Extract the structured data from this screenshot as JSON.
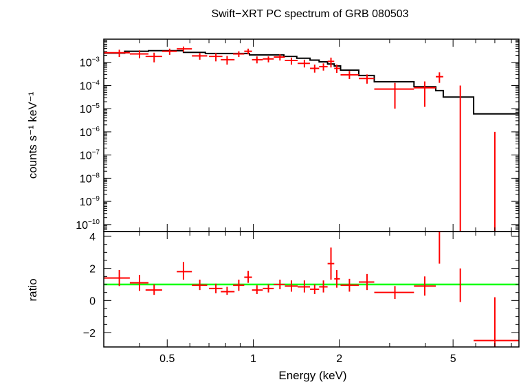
{
  "chart_data": [
    {
      "type": "scatter",
      "panel": "spectrum",
      "title": "Swift−XRT PC spectrum of GRB 080503",
      "xlabel": "",
      "ylabel": "counts s⁻¹ keV⁻¹",
      "xscale": "log",
      "yscale": "log",
      "xlim": [
        0.3,
        8.5
      ],
      "ylim": [
        5e-11,
        0.01
      ],
      "yticks": [
        {
          "value": 0.001,
          "base": "10",
          "exp": "−3"
        },
        {
          "value": 0.0001,
          "base": "10",
          "exp": "−4"
        },
        {
          "value": 1e-05,
          "base": "10",
          "exp": "−5"
        },
        {
          "value": 1e-06,
          "base": "10",
          "exp": "−6"
        },
        {
          "value": 1e-07,
          "base": "10",
          "exp": "−7"
        },
        {
          "value": 1e-08,
          "base": "10",
          "exp": "−8"
        },
        {
          "value": 1e-09,
          "base": "10",
          "exp": "−9"
        },
        {
          "value": 1e-10,
          "base": "10",
          "exp": "−10"
        }
      ],
      "colors": {
        "data": "#ff0000",
        "model": "#000000"
      },
      "series": [
        {
          "type": "errorbar",
          "points": [
            {
              "x": 0.34,
              "xlo": 0.3,
              "xhi": 0.37,
              "y": 0.0026,
              "ylo": 0.0017,
              "yhi": 0.0035
            },
            {
              "x": 0.4,
              "xlo": 0.37,
              "xhi": 0.43,
              "y": 0.0023,
              "ylo": 0.0015,
              "yhi": 0.0033
            },
            {
              "x": 0.45,
              "xlo": 0.42,
              "xhi": 0.48,
              "y": 0.0018,
              "ylo": 0.001,
              "yhi": 0.0026
            },
            {
              "x": 0.51,
              "xlo": 0.48,
              "xhi": 0.54,
              "y": 0.003,
              "ylo": 0.0021,
              "yhi": 0.0039
            },
            {
              "x": 0.57,
              "xlo": 0.54,
              "xhi": 0.61,
              "y": 0.0038,
              "ylo": 0.0028,
              "yhi": 0.0048
            },
            {
              "x": 0.65,
              "xlo": 0.61,
              "xhi": 0.69,
              "y": 0.0019,
              "ylo": 0.0013,
              "yhi": 0.0025
            },
            {
              "x": 0.74,
              "xlo": 0.7,
              "xhi": 0.78,
              "y": 0.0018,
              "ylo": 0.0011,
              "yhi": 0.0025
            },
            {
              "x": 0.81,
              "xlo": 0.77,
              "xhi": 0.86,
              "y": 0.0013,
              "ylo": 0.0008,
              "yhi": 0.0019
            },
            {
              "x": 0.89,
              "xlo": 0.85,
              "xhi": 0.93,
              "y": 0.0023,
              "ylo": 0.0017,
              "yhi": 0.003
            },
            {
              "x": 0.96,
              "xlo": 0.93,
              "xhi": 0.99,
              "y": 0.003,
              "ylo": 0.0022,
              "yhi": 0.0039
            },
            {
              "x": 1.03,
              "xlo": 0.99,
              "xhi": 1.08,
              "y": 0.0013,
              "ylo": 0.0009,
              "yhi": 0.0018
            },
            {
              "x": 1.13,
              "xlo": 1.08,
              "xhi": 1.18,
              "y": 0.0014,
              "ylo": 0.001,
              "yhi": 0.0018
            },
            {
              "x": 1.24,
              "xlo": 1.18,
              "xhi": 1.29,
              "y": 0.0017,
              "ylo": 0.0012,
              "yhi": 0.0022
            },
            {
              "x": 1.36,
              "xlo": 1.29,
              "xhi": 1.43,
              "y": 0.0012,
              "ylo": 0.0008,
              "yhi": 0.0016
            },
            {
              "x": 1.51,
              "xlo": 1.43,
              "xhi": 1.58,
              "y": 0.0009,
              "ylo": 0.0006,
              "yhi": 0.0013
            },
            {
              "x": 1.64,
              "xlo": 1.58,
              "xhi": 1.7,
              "y": 0.00055,
              "ylo": 0.00036,
              "yhi": 0.0008
            },
            {
              "x": 1.76,
              "xlo": 1.7,
              "xhi": 1.82,
              "y": 0.00065,
              "ylo": 0.00044,
              "yhi": 0.0009
            },
            {
              "x": 1.87,
              "xlo": 1.82,
              "xhi": 1.92,
              "y": 0.0011,
              "ylo": 0.0006,
              "yhi": 0.0016
            },
            {
              "x": 1.96,
              "xlo": 1.92,
              "xhi": 2.01,
              "y": 0.00055,
              "ylo": 0.00035,
              "yhi": 0.0008
            },
            {
              "x": 2.17,
              "xlo": 2.02,
              "xhi": 2.34,
              "y": 0.00029,
              "ylo": 0.00019,
              "yhi": 0.00042
            },
            {
              "x": 2.5,
              "xlo": 2.34,
              "xhi": 2.65,
              "y": 0.0002,
              "ylo": 0.00012,
              "yhi": 0.0003
            },
            {
              "x": 3.13,
              "xlo": 2.65,
              "xhi": 3.65,
              "y": 7e-05,
              "ylo": 1e-05,
              "yhi": 0.00013
            },
            {
              "x": 3.98,
              "xlo": 3.65,
              "xhi": 4.35,
              "y": 8e-05,
              "ylo": 1.2e-05,
              "yhi": 0.00015
            },
            {
              "x": 4.48,
              "xlo": 4.35,
              "xhi": 4.62,
              "y": 0.00024,
              "ylo": 0.00013,
              "yhi": 0.00037
            },
            {
              "x": 5.3,
              "xlo": 5.3,
              "xhi": 5.3,
              "y": 0.0001,
              "ylo": 5e-11,
              "yhi": 0.0001
            },
            {
              "x": 7.0,
              "xlo": 7.0,
              "xhi": 7.0,
              "y": 1e-06,
              "ylo": 5e-11,
              "yhi": 1e-06
            }
          ]
        },
        {
          "type": "step",
          "steps": [
            {
              "x0": 0.3,
              "x1": 0.355,
              "y": 0.0025
            },
            {
              "x0": 0.355,
              "x1": 0.43,
              "y": 0.003
            },
            {
              "x0": 0.43,
              "x1": 0.57,
              "y": 0.0032
            },
            {
              "x0": 0.57,
              "x1": 0.68,
              "y": 0.0027
            },
            {
              "x0": 0.68,
              "x1": 0.97,
              "y": 0.0024
            },
            {
              "x0": 0.97,
              "x1": 1.28,
              "y": 0.0021
            },
            {
              "x0": 1.28,
              "x1": 1.42,
              "y": 0.0018
            },
            {
              "x0": 1.42,
              "x1": 1.58,
              "y": 0.0015
            },
            {
              "x0": 1.58,
              "x1": 1.7,
              "y": 0.00125
            },
            {
              "x0": 1.7,
              "x1": 1.82,
              "y": 0.00105
            },
            {
              "x0": 1.82,
              "x1": 1.92,
              "y": 0.00085
            },
            {
              "x0": 1.92,
              "x1": 2.02,
              "y": 0.0007
            },
            {
              "x0": 2.02,
              "x1": 2.34,
              "y": 0.00046
            },
            {
              "x0": 2.34,
              "x1": 2.65,
              "y": 0.00027
            },
            {
              "x0": 2.65,
              "x1": 3.65,
              "y": 0.000145
            },
            {
              "x0": 3.65,
              "x1": 4.35,
              "y": 8.8e-05
            },
            {
              "x0": 4.35,
              "x1": 4.62,
              "y": 6e-05
            },
            {
              "x0": 4.62,
              "x1": 5.9,
              "y": 3.2e-05
            },
            {
              "x0": 5.9,
              "x1": 8.5,
              "y": 6e-06
            }
          ]
        }
      ]
    },
    {
      "type": "scatter",
      "panel": "ratio",
      "xlabel": "Energy (keV)",
      "ylabel": "ratio",
      "xscale": "log",
      "xlim": [
        0.3,
        8.5
      ],
      "ylim": [
        -2.9,
        4.3
      ],
      "xticks": [
        {
          "value": 0.5,
          "label": "0.5"
        },
        {
          "value": 1,
          "label": "1"
        },
        {
          "value": 2,
          "label": "2"
        },
        {
          "value": 5,
          "label": "5"
        }
      ],
      "yticks": [
        {
          "value": 4,
          "label": "4"
        },
        {
          "value": 2,
          "label": "2"
        },
        {
          "value": 0,
          "label": "0"
        },
        {
          "value": -2,
          "label": "−2"
        }
      ],
      "reference_line": 1,
      "colors": {
        "data": "#ff0000",
        "reference": "#00ff00"
      },
      "series": [
        {
          "type": "errorbar",
          "points": [
            {
              "x": 0.34,
              "xlo": 0.3,
              "xhi": 0.37,
              "y": 1.4,
              "ylo": 0.9,
              "yhi": 1.9
            },
            {
              "x": 0.4,
              "xlo": 0.37,
              "xhi": 0.43,
              "y": 1.1,
              "ylo": 0.6,
              "yhi": 1.6
            },
            {
              "x": 0.45,
              "xlo": 0.42,
              "xhi": 0.48,
              "y": 0.65,
              "ylo": 0.35,
              "yhi": 1.0
            },
            {
              "x": 0.57,
              "xlo": 0.54,
              "xhi": 0.61,
              "y": 1.8,
              "ylo": 1.3,
              "yhi": 2.4
            },
            {
              "x": 0.65,
              "xlo": 0.61,
              "xhi": 0.69,
              "y": 0.95,
              "ylo": 0.65,
              "yhi": 1.3
            },
            {
              "x": 0.74,
              "xlo": 0.7,
              "xhi": 0.78,
              "y": 0.75,
              "ylo": 0.45,
              "yhi": 1.05
            },
            {
              "x": 0.81,
              "xlo": 0.77,
              "xhi": 0.86,
              "y": 0.55,
              "ylo": 0.35,
              "yhi": 0.85
            },
            {
              "x": 0.89,
              "xlo": 0.85,
              "xhi": 0.93,
              "y": 0.95,
              "ylo": 0.6,
              "yhi": 1.3
            },
            {
              "x": 0.96,
              "xlo": 0.93,
              "xhi": 0.99,
              "y": 1.45,
              "ylo": 1.1,
              "yhi": 1.85
            },
            {
              "x": 1.03,
              "xlo": 0.99,
              "xhi": 1.08,
              "y": 0.65,
              "ylo": 0.4,
              "yhi": 0.95
            },
            {
              "x": 1.13,
              "xlo": 1.08,
              "xhi": 1.18,
              "y": 0.75,
              "ylo": 0.5,
              "yhi": 1.0
            },
            {
              "x": 1.24,
              "xlo": 1.18,
              "xhi": 1.29,
              "y": 1.0,
              "ylo": 0.7,
              "yhi": 1.3
            },
            {
              "x": 1.36,
              "xlo": 1.29,
              "xhi": 1.43,
              "y": 0.9,
              "ylo": 0.55,
              "yhi": 1.25
            },
            {
              "x": 1.51,
              "xlo": 1.43,
              "xhi": 1.58,
              "y": 0.85,
              "ylo": 0.5,
              "yhi": 1.25
            },
            {
              "x": 1.64,
              "xlo": 1.58,
              "xhi": 1.7,
              "y": 0.7,
              "ylo": 0.4,
              "yhi": 1.0
            },
            {
              "x": 1.76,
              "xlo": 1.7,
              "xhi": 1.82,
              "y": 0.85,
              "ylo": 0.5,
              "yhi": 1.25
            },
            {
              "x": 1.87,
              "xlo": 1.82,
              "xhi": 1.92,
              "y": 2.3,
              "ylo": 1.3,
              "yhi": 3.3
            },
            {
              "x": 1.96,
              "xlo": 1.92,
              "xhi": 2.01,
              "y": 1.35,
              "ylo": 0.8,
              "yhi": 1.9
            },
            {
              "x": 2.17,
              "xlo": 2.02,
              "xhi": 2.34,
              "y": 0.95,
              "ylo": 0.55,
              "yhi": 1.35
            },
            {
              "x": 2.5,
              "xlo": 2.34,
              "xhi": 2.65,
              "y": 1.15,
              "ylo": 0.65,
              "yhi": 1.65
            },
            {
              "x": 3.13,
              "xlo": 2.65,
              "xhi": 3.65,
              "y": 0.5,
              "ylo": 0.1,
              "yhi": 0.9
            },
            {
              "x": 3.98,
              "xlo": 3.65,
              "xhi": 4.35,
              "y": 0.9,
              "ylo": 0.3,
              "yhi": 1.5
            },
            {
              "x": 4.48,
              "xlo": 4.35,
              "xhi": 4.62,
              "y": 4.3,
              "ylo": 2.3,
              "yhi": 4.3
            },
            {
              "x": 5.3,
              "xlo": 5.3,
              "xhi": 5.3,
              "y": 1.0,
              "ylo": -0.1,
              "yhi": 2.0
            },
            {
              "x": 7.0,
              "xlo": 5.9,
              "xhi": 8.5,
              "y": -2.5,
              "ylo": -2.9,
              "yhi": 0.2
            }
          ]
        }
      ]
    }
  ]
}
